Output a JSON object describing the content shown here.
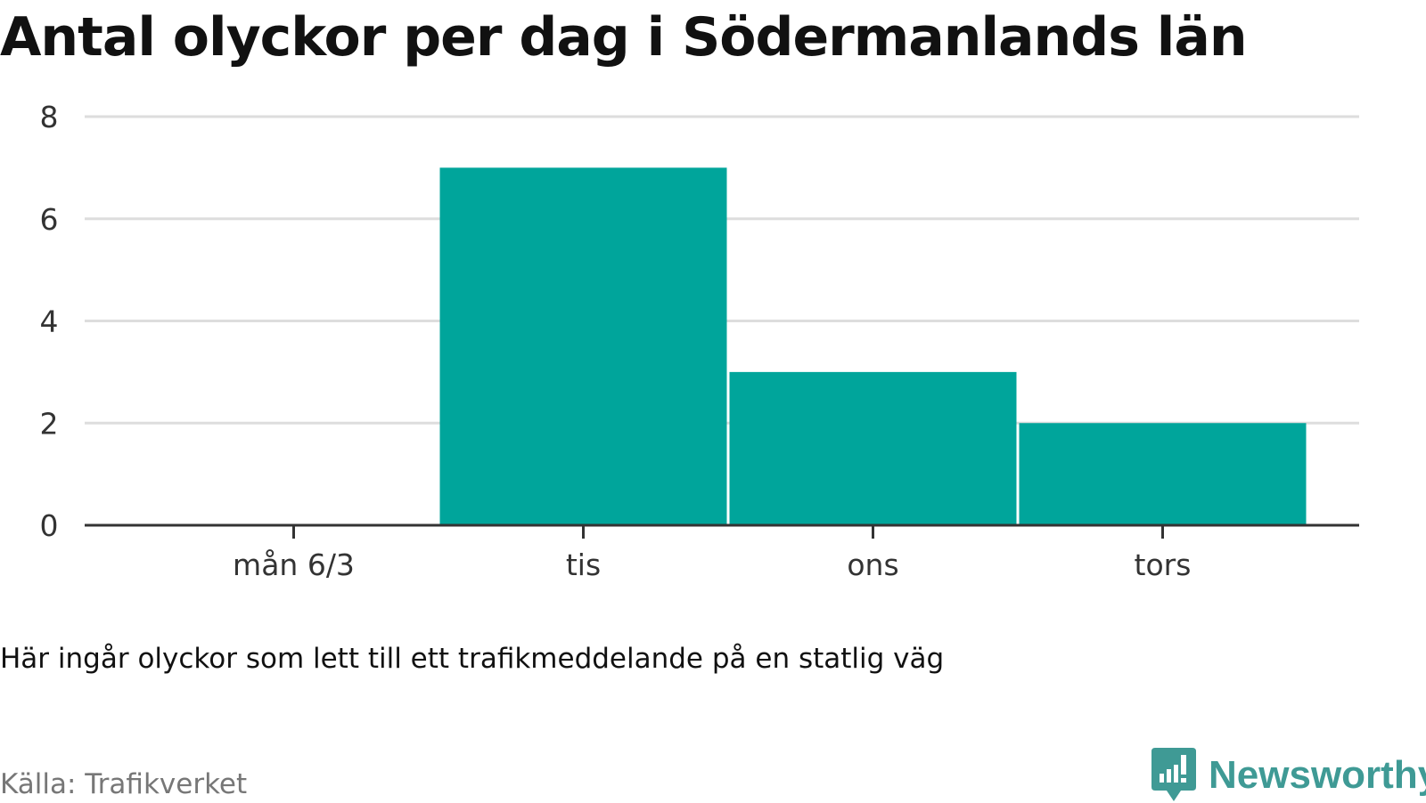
{
  "title": "Antal olyckor per dag i Södermanlands län",
  "caption": "Här ingår olyckor som lett till ett trafikmeddelande på en statlig väg",
  "source": "Källa: Trafikverket",
  "brand": {
    "name": "Newsworthy",
    "icon": "newsworthy-logo-icon",
    "color": "#3f9a95"
  },
  "colors": {
    "bar": "#00a59b",
    "grid": "#dddddd",
    "axis": "#333333"
  },
  "chart_data": {
    "type": "bar",
    "categories": [
      "mån 6/3",
      "tis",
      "ons",
      "tors"
    ],
    "values": [
      0,
      7,
      3,
      2
    ],
    "ylim": [
      0,
      8
    ],
    "yticks": [
      0,
      2,
      4,
      6,
      8
    ],
    "xlabel": "",
    "ylabel": "",
    "grid": true,
    "legend": "none"
  }
}
